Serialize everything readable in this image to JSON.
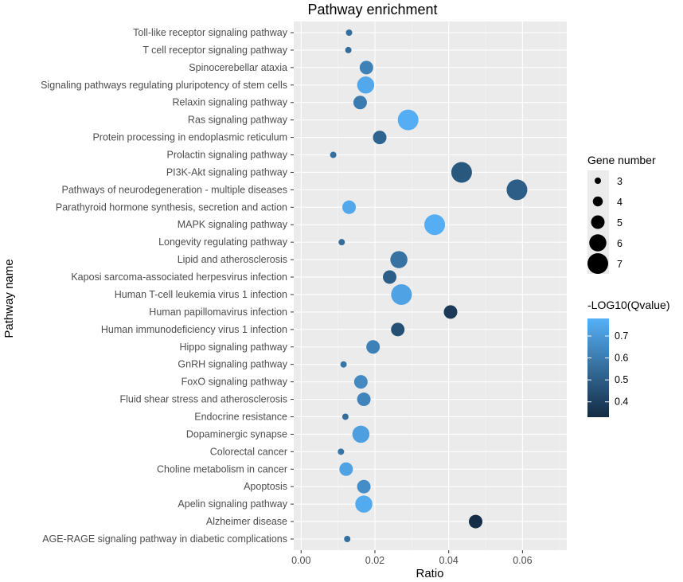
{
  "chart_data": {
    "type": "scatter",
    "title": "Pathway enrichment",
    "xlabel": "Ratio",
    "ylabel": "Pathway name",
    "xlim": [
      -0.002,
      0.072
    ],
    "xticks": [
      0.0,
      0.02,
      0.04,
      0.06
    ],
    "xtick_labels": [
      "0.00",
      "0.02",
      "0.04",
      "0.06"
    ],
    "grid": true,
    "size_legend": {
      "title": "Gene number",
      "values": [
        3,
        4,
        5,
        6,
        7
      ],
      "labels": [
        "3",
        "4",
        "5",
        "6",
        "7"
      ]
    },
    "color_legend": {
      "title": "-LOG10(Qvalue)",
      "min": 0.33,
      "max": 0.78,
      "ticks": [
        0.4,
        0.5,
        0.6,
        0.7
      ],
      "tick_labels": [
        "0.4",
        "0.5",
        "0.6",
        "0.7"
      ],
      "low_color": "#132b43",
      "high_color": "#56b1f7"
    },
    "points": [
      {
        "pathway": "Toll-like receptor signaling pathway",
        "ratio": 0.013,
        "genes": 3,
        "qvalue": 0.56
      },
      {
        "pathway": "T cell receptor signaling pathway",
        "ratio": 0.0128,
        "genes": 3,
        "qvalue": 0.55
      },
      {
        "pathway": "Spinocerebellar ataxia",
        "ratio": 0.0177,
        "genes": 5,
        "qvalue": 0.62
      },
      {
        "pathway": "Signaling pathways regulating pluripotency of stem cells",
        "ratio": 0.0175,
        "genes": 6,
        "qvalue": 0.75
      },
      {
        "pathway": "Relaxin signaling pathway",
        "ratio": 0.016,
        "genes": 5,
        "qvalue": 0.6
      },
      {
        "pathway": "Ras signaling pathway",
        "ratio": 0.029,
        "genes": 7,
        "qvalue": 0.77
      },
      {
        "pathway": "Protein processing in endoplasmic reticulum",
        "ratio": 0.0213,
        "genes": 5,
        "qvalue": 0.52
      },
      {
        "pathway": "Prolactin signaling pathway",
        "ratio": 0.0087,
        "genes": 3,
        "qvalue": 0.56
      },
      {
        "pathway": "PI3K-Akt signaling pathway",
        "ratio": 0.0435,
        "genes": 7,
        "qvalue": 0.48
      },
      {
        "pathway": "Pathways of neurodegeneration - multiple diseases",
        "ratio": 0.0585,
        "genes": 7,
        "qvalue": 0.5
      },
      {
        "pathway": "Parathyroid hormone synthesis, secretion and action",
        "ratio": 0.013,
        "genes": 5,
        "qvalue": 0.75
      },
      {
        "pathway": "MAPK signaling pathway",
        "ratio": 0.0362,
        "genes": 7,
        "qvalue": 0.77
      },
      {
        "pathway": "Longevity regulating pathway",
        "ratio": 0.011,
        "genes": 3,
        "qvalue": 0.55
      },
      {
        "pathway": "Lipid and atherosclerosis",
        "ratio": 0.0265,
        "genes": 6,
        "qvalue": 0.57
      },
      {
        "pathway": "Kaposi sarcoma-associated herpesvirus infection",
        "ratio": 0.024,
        "genes": 5,
        "qvalue": 0.5
      },
      {
        "pathway": "Human T-cell leukemia virus 1 infection",
        "ratio": 0.0272,
        "genes": 7,
        "qvalue": 0.73
      },
      {
        "pathway": "Human papillomavirus infection",
        "ratio": 0.0405,
        "genes": 5,
        "qvalue": 0.38
      },
      {
        "pathway": "Human immunodeficiency virus 1 infection",
        "ratio": 0.0262,
        "genes": 5,
        "qvalue": 0.45
      },
      {
        "pathway": "Hippo signaling pathway",
        "ratio": 0.0195,
        "genes": 5,
        "qvalue": 0.62
      },
      {
        "pathway": "GnRH signaling pathway",
        "ratio": 0.0115,
        "genes": 3,
        "qvalue": 0.58
      },
      {
        "pathway": "FoxO signaling pathway",
        "ratio": 0.0162,
        "genes": 5,
        "qvalue": 0.65
      },
      {
        "pathway": "Fluid shear stress and atherosclerosis",
        "ratio": 0.017,
        "genes": 5,
        "qvalue": 0.63
      },
      {
        "pathway": "Endocrine resistance",
        "ratio": 0.012,
        "genes": 3,
        "qvalue": 0.55
      },
      {
        "pathway": "Dopaminergic synapse",
        "ratio": 0.0162,
        "genes": 6,
        "qvalue": 0.72
      },
      {
        "pathway": "Colorectal cancer",
        "ratio": 0.0108,
        "genes": 3,
        "qvalue": 0.58
      },
      {
        "pathway": "Choline metabolism in cancer",
        "ratio": 0.0122,
        "genes": 5,
        "qvalue": 0.73
      },
      {
        "pathway": "Apoptosis",
        "ratio": 0.017,
        "genes": 5,
        "qvalue": 0.66
      },
      {
        "pathway": "Apelin signaling pathway",
        "ratio": 0.017,
        "genes": 6,
        "qvalue": 0.76
      },
      {
        "pathway": "Alzheimer disease",
        "ratio": 0.0473,
        "genes": 5,
        "qvalue": 0.34
      },
      {
        "pathway": "AGE-RAGE signaling pathway in diabetic complications",
        "ratio": 0.0125,
        "genes": 3,
        "qvalue": 0.56
      }
    ]
  }
}
